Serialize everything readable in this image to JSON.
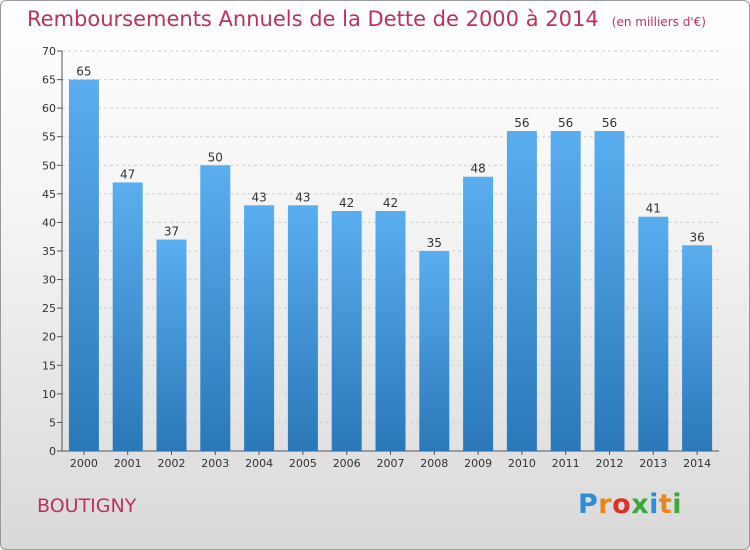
{
  "header": {
    "title": "Remboursements Annuels de la Dette de 2000 à 2014",
    "unit": "(en milliers d'€)"
  },
  "footer": {
    "commune": "BOUTIGNY",
    "logo_letters": [
      "P",
      "r",
      "o",
      "x",
      "i",
      "t",
      "i"
    ],
    "logo_colors": [
      "#2a8fd6",
      "#e8861a",
      "#d8322a",
      "#3aaa35",
      "#2a8fd6",
      "#e8861a",
      "#3aaa35"
    ]
  },
  "chart_data": {
    "type": "bar",
    "title": "Remboursements Annuels de la Dette de 2000 à 2014",
    "xlabel": "",
    "ylabel": "",
    "categories": [
      "2000",
      "2001",
      "2002",
      "2003",
      "2004",
      "2005",
      "2006",
      "2007",
      "2008",
      "2009",
      "2010",
      "2011",
      "2012",
      "2013",
      "2014"
    ],
    "values": [
      65,
      47,
      37,
      50,
      43,
      43,
      42,
      42,
      35,
      48,
      56,
      56,
      56,
      41,
      36
    ],
    "ylim": [
      0,
      70
    ],
    "yticks": [
      0,
      5,
      10,
      15,
      20,
      25,
      30,
      35,
      40,
      45,
      50,
      55,
      60,
      65,
      70
    ],
    "grid": true,
    "bar_color_top": "#5aaef0",
    "bar_color_bottom": "#2a78b8"
  }
}
